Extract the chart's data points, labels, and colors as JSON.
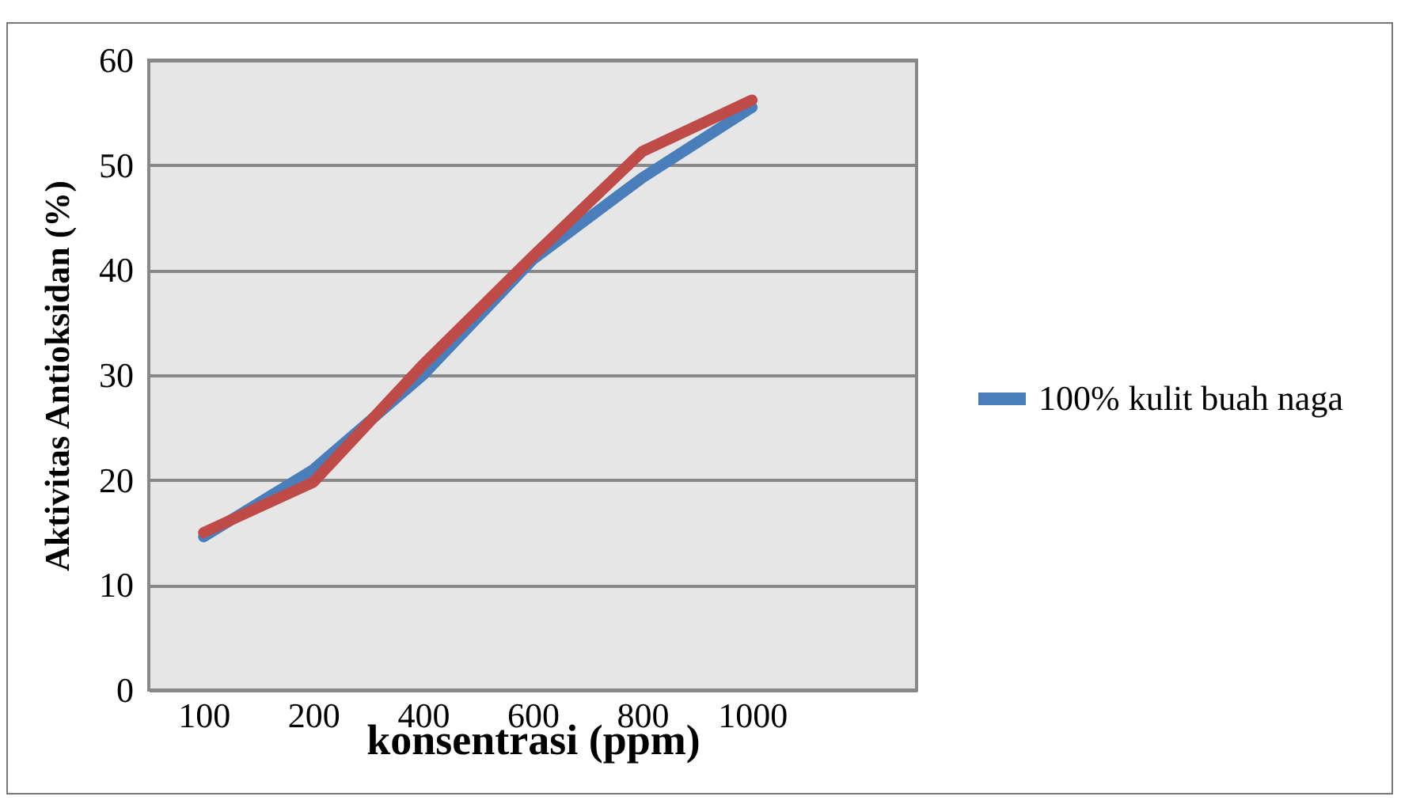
{
  "chart_data": {
    "type": "line",
    "xlabel": "konsentrasi (ppm)",
    "ylabel": "Aktivitas Antioksidan (%)",
    "categories": [
      "100",
      "200",
      "400",
      "600",
      "800",
      "1000",
      null
    ],
    "series": [
      {
        "name": "100% kulit buah naga",
        "color": "#4a7ebb",
        "values": [
          14.6,
          21.0,
          30.0,
          41.0,
          48.8,
          55.5,
          null
        ]
      },
      {
        "color": "#be4b48",
        "values": [
          15.0,
          19.8,
          31.0,
          41.3,
          51.3,
          56.2,
          null
        ]
      }
    ],
    "ylim": [
      0,
      60
    ],
    "yticks": [
      0,
      10,
      20,
      30,
      40,
      50,
      60
    ],
    "grid": "y",
    "legend": "right",
    "marker": "none",
    "line_style": "solid"
  }
}
